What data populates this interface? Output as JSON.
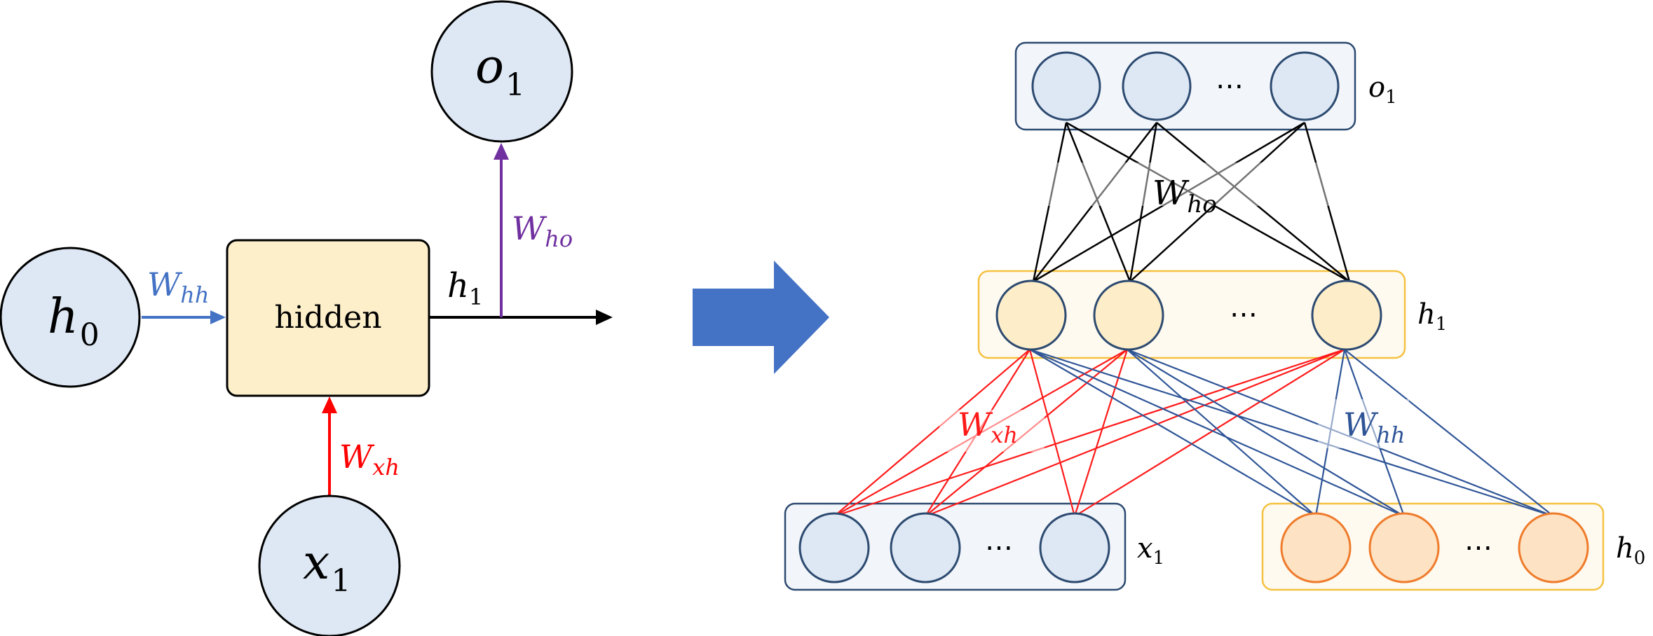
{
  "left": {
    "h0": {
      "base": "h",
      "sub": "0"
    },
    "x1": {
      "base": "x",
      "sub": "1"
    },
    "o1": {
      "base": "o",
      "sub": "1"
    },
    "hidden_label": "hidden",
    "h1": {
      "base": "h",
      "sub": "1"
    },
    "w_hh": {
      "base": "W",
      "sub": "hh"
    },
    "w_xh": {
      "base": "W",
      "sub": "xh"
    },
    "w_ho": {
      "base": "W",
      "sub": "ho"
    }
  },
  "right": {
    "o1": {
      "base": "o",
      "sub": "1"
    },
    "h1": {
      "base": "h",
      "sub": "1"
    },
    "x1": {
      "base": "x",
      "sub": "1"
    },
    "h0": {
      "base": "h",
      "sub": "0"
    },
    "w_ho": {
      "base": "W",
      "sub": "ho"
    },
    "w_xh": {
      "base": "W",
      "sub": "xh"
    },
    "w_hh": {
      "base": "W",
      "sub": "hh"
    },
    "ellipsis": "⋯"
  },
  "colors": {
    "node_blue_fill": "#dde8f4",
    "node_stroke": "#2d4a70",
    "hidden_fill": "#fcefc9",
    "yellow_node_fill": "#fdeec9",
    "orange_node_fill": "#fde3c4",
    "orange_stroke": "#ef7b2b",
    "panel_yellow_stroke": "#f5c141",
    "arrow_blue": "#4472c4",
    "arrow_red": "#ff0000",
    "arrow_purple": "#7030a0",
    "big_arrow": "#4472c4",
    "line_black": "#000000",
    "line_red": "#ff1a1a",
    "line_blue": "#2f5597"
  }
}
